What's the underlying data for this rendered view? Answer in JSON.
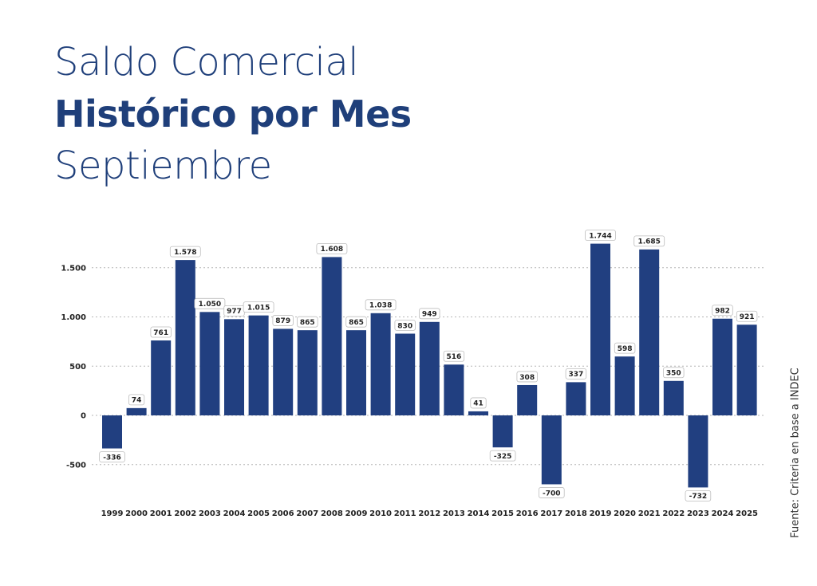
{
  "header": {
    "line1": "Saldo Comercial",
    "line2": "Histórico por Mes",
    "line3": "Septiembre"
  },
  "source": "Fuente: Criteria en base a INDEC",
  "colors": {
    "bar": "#213f80",
    "title": "#1f3f7a"
  },
  "chart_data": {
    "type": "bar",
    "categories": [
      "1999",
      "2000",
      "2001",
      "2002",
      "2003",
      "2004",
      "2005",
      "2006",
      "2007",
      "2008",
      "2009",
      "2010",
      "2011",
      "2012",
      "2013",
      "2014",
      "2015",
      "2016",
      "2017",
      "2018",
      "2019",
      "2020",
      "2021",
      "2022",
      "2023",
      "2024",
      "2025"
    ],
    "values": [
      -336,
      74,
      761,
      1578,
      1050,
      977,
      1015,
      879,
      865,
      1608,
      865,
      1038,
      830,
      949,
      516,
      41,
      -325,
      308,
      -700,
      337,
      1744,
      598,
      1685,
      350,
      -732,
      982,
      921
    ],
    "data_labels": [
      "-336",
      "74",
      "761",
      "1.578",
      "1.050",
      "977",
      "1.015",
      "879",
      "865",
      "1.608",
      "865",
      "1.038",
      "830",
      "949",
      "516",
      "41",
      "-325",
      "308",
      "-700",
      "337",
      "1.744",
      "598",
      "1.685",
      "350",
      "-732",
      "982",
      "921"
    ],
    "yticks": [
      -500,
      0,
      500,
      1000,
      1500
    ],
    "ytick_labels": [
      "-500",
      "0",
      "500",
      "1.000",
      "1.500"
    ],
    "ylim": [
      -800,
      1800
    ],
    "grid": true,
    "legend": "none"
  }
}
